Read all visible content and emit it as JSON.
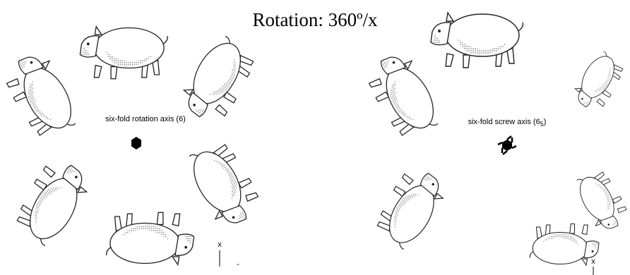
{
  "header": {
    "title": "Rotation:  360º/x"
  },
  "left_panel": {
    "label": "six-fold rotation axis (6)",
    "axis_label": "x",
    "axis_mark": "-"
  },
  "right_panel": {
    "label": "six-fold screw axis (6",
    "label_subscript": "5",
    "label_suffix": ")",
    "axis_label": "x"
  }
}
